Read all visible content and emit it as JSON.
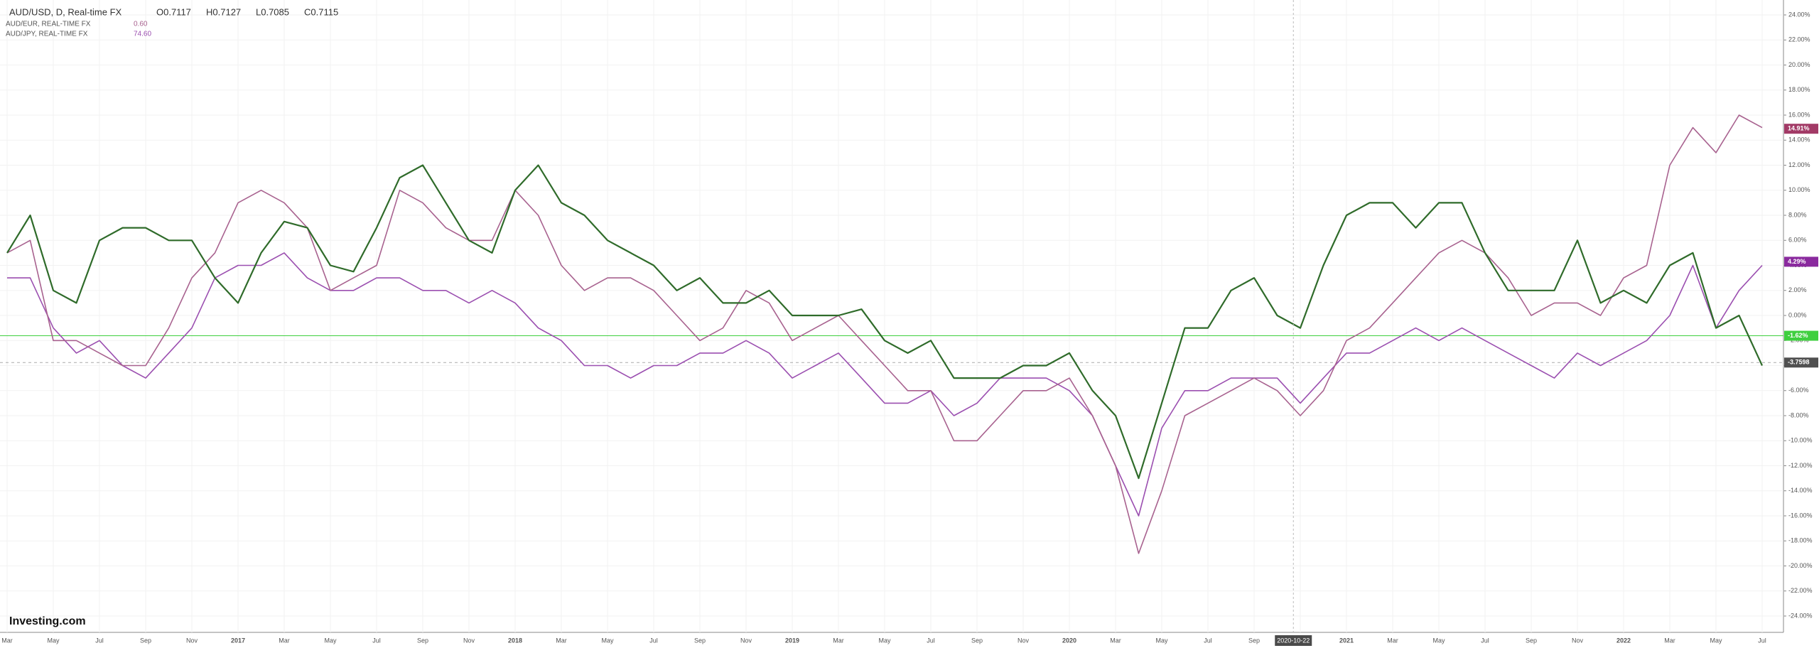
{
  "chart_data": {
    "type": "line",
    "ohlc": [
      "O0.7117",
      "H0.7127",
      "L0.7085",
      "C0.7115"
    ],
    "logo": "Investing.com",
    "categories": [
      "Mar",
      null,
      "May",
      null,
      "Jul",
      null,
      "Sep",
      null,
      "Nov",
      null,
      "2017",
      null,
      "Mar",
      null,
      "May",
      null,
      "Jul",
      null,
      "Sep",
      null,
      "Nov",
      null,
      "2018",
      null,
      "Mar",
      null,
      "May",
      null,
      "Jul",
      null,
      "Sep",
      null,
      "Nov",
      null,
      "2019",
      null,
      "Mar",
      null,
      "May",
      null,
      "Jul",
      null,
      "Sep",
      null,
      "Nov",
      null,
      "2020",
      null,
      "Mar",
      null,
      "May",
      null,
      "Jul",
      null,
      "Sep",
      null,
      "Nov",
      null,
      "2021",
      null,
      "Mar",
      null,
      "May",
      null,
      "Jul",
      null,
      "Sep",
      null,
      "Nov",
      null,
      "2022",
      null,
      "Mar",
      null,
      "May",
      null,
      "Jul"
    ],
    "series": [
      {
        "name": "AUD/USD, D, Real-time FX",
        "color": "#2f6b2a",
        "values": [
          5,
          8,
          2,
          1,
          6,
          7,
          7,
          6,
          6,
          3,
          1,
          5,
          7.5,
          7,
          4,
          3.5,
          7,
          11,
          12,
          9,
          6,
          5,
          10,
          12,
          9,
          8,
          6,
          5,
          4,
          2,
          3,
          1,
          1,
          2,
          0,
          0,
          0,
          0.5,
          -2,
          -3,
          -2,
          -5,
          -5,
          -5,
          -4,
          -4,
          -3,
          -6,
          -8,
          -13,
          -7,
          -1,
          -1,
          2,
          3,
          0,
          -1,
          4,
          8,
          9,
          9,
          7,
          9,
          9,
          5,
          2,
          2,
          2,
          6,
          1,
          2,
          1,
          4,
          5,
          -1,
          0,
          -4
        ]
      },
      {
        "name": "AUD/EUR, REAL-TIME FX",
        "color": "#a8628f",
        "quote": "0.60",
        "values": [
          5,
          6,
          -2,
          -2,
          -3,
          -4,
          -4,
          -1,
          3,
          5,
          9,
          10,
          9,
          7,
          2,
          3,
          4,
          10,
          9,
          7,
          6,
          6,
          10,
          8,
          4,
          2,
          3,
          3,
          2,
          0,
          -2,
          -1,
          2,
          1,
          -2,
          -1,
          0,
          -2,
          -4,
          -6,
          -6,
          -10,
          -10,
          -8,
          -6,
          -6,
          -5,
          -8,
          -12,
          -19,
          -14,
          -8,
          -7,
          -6,
          -5,
          -6,
          -8,
          -6,
          -2,
          -1,
          1,
          3,
          5,
          6,
          5,
          3,
          0,
          1,
          1,
          0,
          3,
          4,
          12,
          15,
          13,
          16,
          15
        ]
      },
      {
        "name": "AUD/JPY, REAL-TIME FX",
        "color": "#9b4fb0",
        "quote": "74.60",
        "values": [
          3,
          3,
          -1,
          -3,
          -2,
          -4,
          -5,
          -3,
          -1,
          3,
          4,
          4,
          5,
          3,
          2,
          2,
          3,
          3,
          2,
          2,
          1,
          2,
          1,
          -1,
          -2,
          -4,
          -4,
          -5,
          -4,
          -4,
          -3,
          -3,
          -2,
          -3,
          -5,
          -4,
          -3,
          -5,
          -7,
          -7,
          -6,
          -8,
          -7,
          -5,
          -5,
          -5,
          -6,
          -8,
          -12,
          -16,
          -9,
          -6,
          -6,
          -5,
          -5,
          -5,
          -7,
          -5,
          -3,
          -3,
          -2,
          -1,
          -2,
          -1,
          -2,
          -3,
          -4,
          -5,
          -3,
          -4,
          -3,
          -2,
          0,
          4,
          -1,
          2,
          4
        ]
      }
    ],
    "ylim": [
      -24,
      24
    ],
    "yticks": [
      {
        "value": 24,
        "label": "24.00%"
      },
      {
        "value": 22,
        "label": "22.00%"
      },
      {
        "value": 20,
        "label": "20.00%"
      },
      {
        "value": 18,
        "label": "18.00%"
      },
      {
        "value": 16,
        "label": "16.00%"
      },
      {
        "value": 14,
        "label": "14.00%"
      },
      {
        "value": 12,
        "label": "12.00%"
      },
      {
        "value": 10,
        "label": "10.00%"
      },
      {
        "value": 8,
        "label": "8.00%"
      },
      {
        "value": 6,
        "label": "6.00%"
      },
      {
        "value": 4,
        "label": "4.00%"
      },
      {
        "value": 2,
        "label": "2.00%"
      },
      {
        "value": 0,
        "label": "0.00%"
      },
      {
        "value": -2,
        "label": "-2.00%"
      },
      {
        "value": -4,
        "label": "-4.00%"
      },
      {
        "value": -6,
        "label": "-6.00%"
      },
      {
        "value": -8,
        "label": "-8.00%"
      },
      {
        "value": -10,
        "label": "-10.00%"
      },
      {
        "value": -12,
        "label": "-12.00%"
      },
      {
        "value": -14,
        "label": "-14.00%"
      },
      {
        "value": -16,
        "label": "-16.00%"
      },
      {
        "value": -18,
        "label": "-18.00%"
      },
      {
        "value": -20,
        "label": "-20.00%"
      },
      {
        "value": -22,
        "label": "-22.00%"
      },
      {
        "value": -24,
        "label": "-24.00%"
      }
    ],
    "grid": true,
    "price_labels": [
      {
        "value": 14.91,
        "label": "14.91%",
        "color": "#a23a66"
      },
      {
        "value": 4.29,
        "label": "4.29%",
        "color": "#8a2a9e"
      },
      {
        "value": -1.62,
        "label": "-1.62%",
        "color": "#3fcf3f"
      },
      {
        "value": -3.7598,
        "label": "-3.7598",
        "color": "#505050"
      }
    ],
    "crosshair": "2020-10-22"
  }
}
